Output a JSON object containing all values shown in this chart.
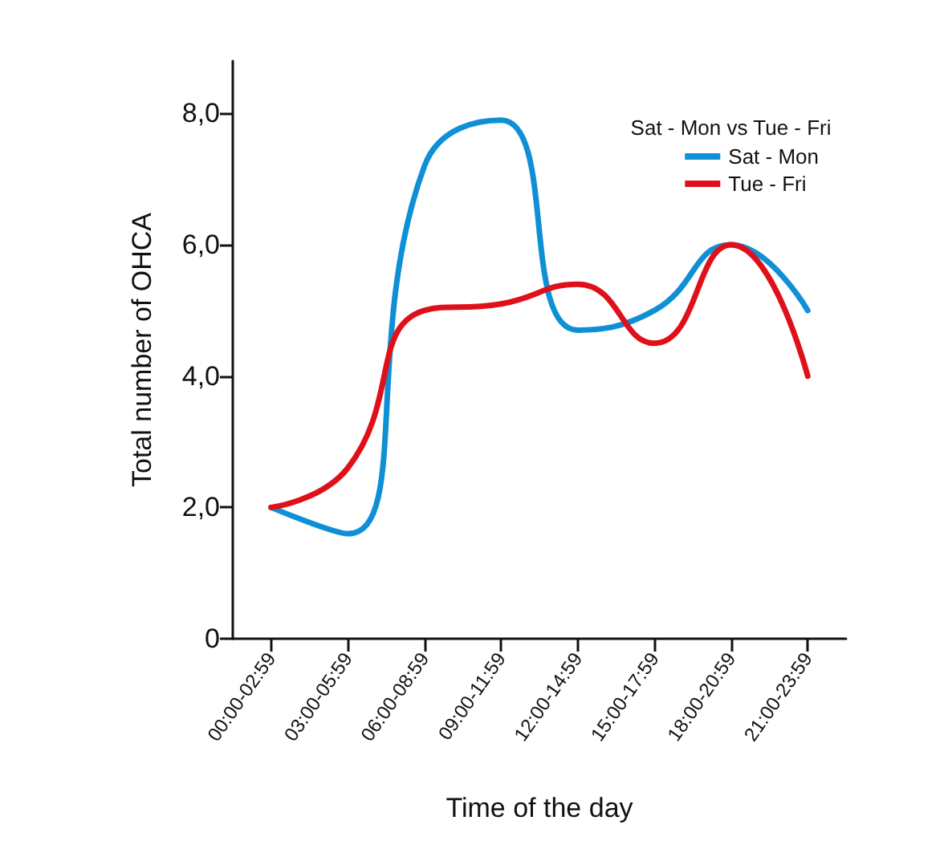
{
  "chart_data": {
    "type": "line",
    "xlabel": "Time of the day",
    "ylabel": "Total number of OHCA",
    "legend_title": "Sat - Mon vs Tue - Fri",
    "categories": [
      "00:00-02:59",
      "03:00-05:59",
      "06:00-08:59",
      "09:00-11:59",
      "12:00-14:59",
      "15:00-17:59",
      "18:00-20:59",
      "21:00-23:59"
    ],
    "series": [
      {
        "name": "Sat - Mon",
        "color": "#0f8fd6",
        "values": [
          2.0,
          1.6,
          7.2,
          7.9,
          4.7,
          5.0,
          6.0,
          5.0
        ]
      },
      {
        "name": "Tue - Fri",
        "color": "#e0101a",
        "values": [
          2.0,
          2.6,
          5.0,
          5.1,
          5.4,
          4.5,
          6.0,
          4.0
        ]
      }
    ],
    "ylim": [
      0,
      8.8
    ],
    "yticks": [
      0,
      {
        "value": 2,
        "label": "2,0"
      },
      {
        "value": 4,
        "label": "4,0"
      },
      {
        "value": 6,
        "label": "6,0"
      },
      {
        "value": 8,
        "label": "8,0"
      }
    ],
    "grid": false,
    "legend": "top right",
    "marker": "none",
    "line_style": "solid"
  }
}
